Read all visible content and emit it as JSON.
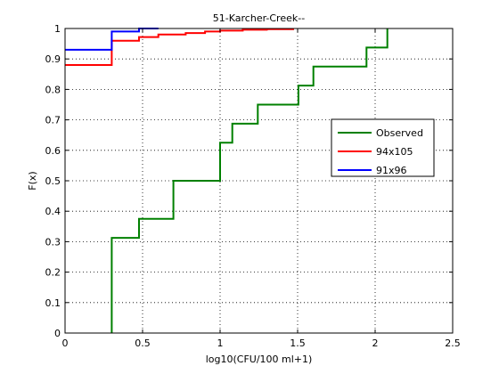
{
  "chart_data": {
    "type": "line",
    "step": true,
    "title": "51-Karcher-Creek--",
    "xlabel": "log10(CFU/100 ml+1)",
    "ylabel": "F(x)",
    "xlim": [
      0,
      2.5
    ],
    "ylim": [
      0,
      1
    ],
    "xticks": [
      0,
      0.5,
      1,
      1.5,
      2,
      2.5
    ],
    "yticks": [
      0,
      0.1,
      0.2,
      0.3,
      0.4,
      0.5,
      0.6,
      0.7,
      0.8,
      0.9,
      1
    ],
    "xtick_labels": [
      "0",
      "0.5",
      "1",
      "1.5",
      "2",
      "2.5"
    ],
    "ytick_labels": [
      "0",
      "0.1",
      "0.2",
      "0.3",
      "0.4",
      "0.5",
      "0.6",
      "0.7",
      "0.8",
      "0.9",
      "1"
    ],
    "grid": true,
    "legend_position": "right",
    "series": [
      {
        "name": "Observed",
        "color": "#008000",
        "x": [
          0.301,
          0.301,
          0.477,
          0.477,
          0.699,
          0.699,
          1.0,
          1.0,
          1.079,
          1.079,
          1.243,
          1.243,
          1.505,
          1.505,
          1.602,
          1.602,
          1.944,
          1.944,
          2.079,
          2.079
        ],
        "y": [
          0,
          0.3125,
          0.3125,
          0.375,
          0.375,
          0.5,
          0.5,
          0.625,
          0.625,
          0.6875,
          0.6875,
          0.75,
          0.75,
          0.8125,
          0.8125,
          0.875,
          0.875,
          0.9375,
          0.9375,
          1.0
        ]
      },
      {
        "name": "94x105",
        "color": "#ff0000",
        "x": [
          0,
          0.301,
          0.301,
          0.477,
          0.477,
          0.602,
          0.602,
          0.778,
          0.778,
          0.903,
          0.903,
          1.0,
          1.0,
          1.146,
          1.146,
          1.301,
          1.301,
          1.477
        ],
        "y": [
          0.88,
          0.88,
          0.96,
          0.96,
          0.972,
          0.972,
          0.98,
          0.98,
          0.985,
          0.985,
          0.99,
          0.99,
          0.993,
          0.993,
          0.996,
          0.996,
          0.998,
          0.998
        ]
      },
      {
        "name": "91x96",
        "color": "#0000ff",
        "x": [
          0,
          0.301,
          0.301,
          0.477,
          0.477,
          0.602
        ],
        "y": [
          0.93,
          0.93,
          0.99,
          0.99,
          1.0,
          1.0
        ]
      }
    ]
  }
}
